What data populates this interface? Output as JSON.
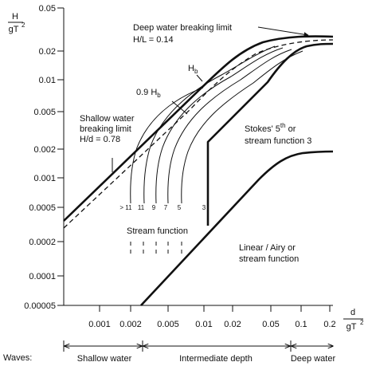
{
  "axes": {
    "y_label_num": "H",
    "y_label_den": "gT",
    "y_label_exp": "2",
    "x_label_num": "d",
    "x_label_den": "gT",
    "x_label_exp": "2",
    "y_ticks": [
      "0.05",
      "0.02",
      "0.01",
      "0.005",
      "0.002",
      "0.001",
      "0.0005",
      "0.0002",
      "0.0001",
      "0.00005"
    ],
    "x_ticks": [
      "0.001",
      "0.002",
      "0.005",
      "0.01",
      "0.02",
      "0.05",
      "0.1",
      "0.2"
    ]
  },
  "labels": {
    "deep_breaking_1": "Deep water breaking limit",
    "deep_breaking_2": "H/L = 0.14",
    "hb_main": "H",
    "hb_sub": "b",
    "hb90_main": "0.9 H",
    "hb90_sub": "b",
    "shallow_1": "Shallow water",
    "shallow_2": "breaking limit",
    "shallow_3": "H/d = 0.78",
    "stokes_1": "Stokes' 5",
    "stokes_sup": "th",
    "stokes_1b": " or",
    "stokes_2": "stream function 3",
    "stream_function": "Stream function",
    "linear_1": "Linear / Airy or",
    "linear_2": "stream function",
    "order_labels": [
      "> 11",
      "11",
      "9",
      "7",
      "5",
      "3"
    ]
  },
  "waves": {
    "title": "Waves:",
    "shallow": "Shallow water",
    "intermediate": "Intermediate depth",
    "deep": "Deep water"
  }
}
